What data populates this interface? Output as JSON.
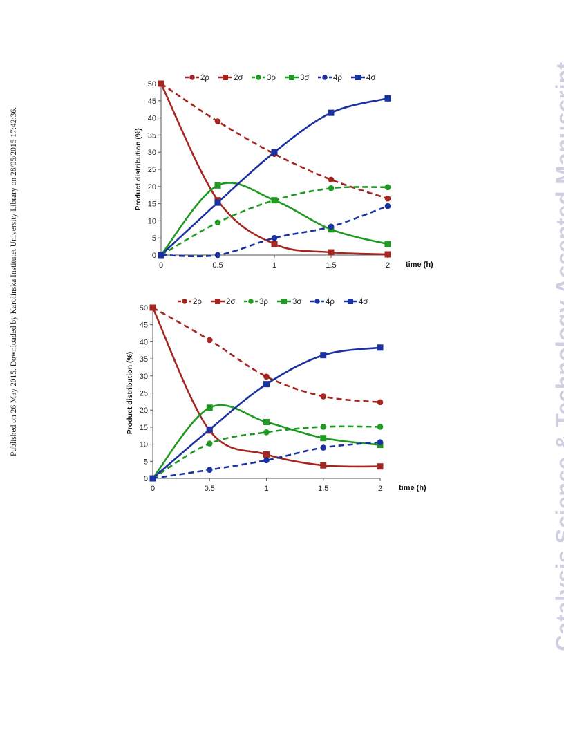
{
  "side_note": "Published on 26 May 2015. Downloaded by Karolinska Institutet University Library on 28/05/2015 17:42:36.",
  "watermark": "Catalysis Science & Technology Accepted Manuscript",
  "colors": {
    "red": "#a52520",
    "green": "#1f9922",
    "blue": "#1a32a0"
  },
  "chart_data": [
    {
      "type": "line",
      "xlabel": "time (h)",
      "ylabel": "Product distribution (%)",
      "x": [
        0,
        0.5,
        1,
        1.5,
        2
      ],
      "xticks": [
        "0",
        "0.5",
        "1",
        "1.5",
        "2"
      ],
      "yticks": [
        "0",
        "5",
        "10",
        "15",
        "20",
        "25",
        "30",
        "35",
        "40",
        "45",
        "50"
      ],
      "xlim": [
        0,
        2
      ],
      "ylim": [
        0,
        50
      ],
      "legend": "top",
      "series": [
        {
          "name": "2ρ",
          "color": "#a52520",
          "dash": true,
          "marker": "circle",
          "values": [
            50,
            39,
            29.5,
            22,
            16.5
          ]
        },
        {
          "name": "2σ",
          "color": "#a52520",
          "dash": false,
          "marker": "square",
          "values": [
            50,
            16,
            3.2,
            0.8,
            0.2
          ]
        },
        {
          "name": "3ρ",
          "color": "#1f9922",
          "dash": true,
          "marker": "circle",
          "values": [
            0,
            9.5,
            16,
            19.5,
            19.8
          ]
        },
        {
          "name": "3σ",
          "color": "#1f9922",
          "dash": false,
          "marker": "square",
          "values": [
            0,
            20.3,
            16,
            7.5,
            3.2
          ]
        },
        {
          "name": "4ρ",
          "color": "#1a32a0",
          "dash": true,
          "marker": "circle",
          "values": [
            0,
            0,
            5,
            8.3,
            14.3
          ]
        },
        {
          "name": "4σ",
          "color": "#1a32a0",
          "dash": false,
          "marker": "square",
          "values": [
            0,
            15.3,
            30,
            41.5,
            45.7
          ]
        }
      ]
    },
    {
      "type": "line",
      "xlabel": "time (h)",
      "ylabel": "Product distribution (%)",
      "x": [
        0,
        0.5,
        1,
        1.5,
        2
      ],
      "xticks": [
        "0",
        "0.5",
        "1",
        "1.5",
        "2"
      ],
      "yticks": [
        "0",
        "5",
        "10",
        "15",
        "20",
        "25",
        "30",
        "35",
        "40",
        "45",
        "50"
      ],
      "xlim": [
        0,
        2
      ],
      "ylim": [
        0,
        50
      ],
      "legend": "top",
      "series": [
        {
          "name": "2ρ",
          "color": "#a52520",
          "dash": true,
          "marker": "circle",
          "values": [
            50,
            40.5,
            29.8,
            24,
            22.3
          ]
        },
        {
          "name": "2σ",
          "color": "#a52520",
          "dash": false,
          "marker": "square",
          "values": [
            50,
            14,
            7,
            3.8,
            3.5
          ]
        },
        {
          "name": "3ρ",
          "color": "#1f9922",
          "dash": true,
          "marker": "circle",
          "values": [
            0,
            10.2,
            13.5,
            15.1,
            15.1
          ]
        },
        {
          "name": "3σ",
          "color": "#1f9922",
          "dash": false,
          "marker": "square",
          "values": [
            0,
            20.7,
            16.5,
            11.8,
            9.8
          ]
        },
        {
          "name": "4ρ",
          "color": "#1a32a0",
          "dash": true,
          "marker": "circle",
          "values": [
            0,
            2.5,
            5.3,
            9,
            10.6
          ]
        },
        {
          "name": "4σ",
          "color": "#1a32a0",
          "dash": false,
          "marker": "square",
          "values": [
            0,
            14.3,
            27.6,
            36.1,
            38.3
          ]
        }
      ]
    }
  ]
}
